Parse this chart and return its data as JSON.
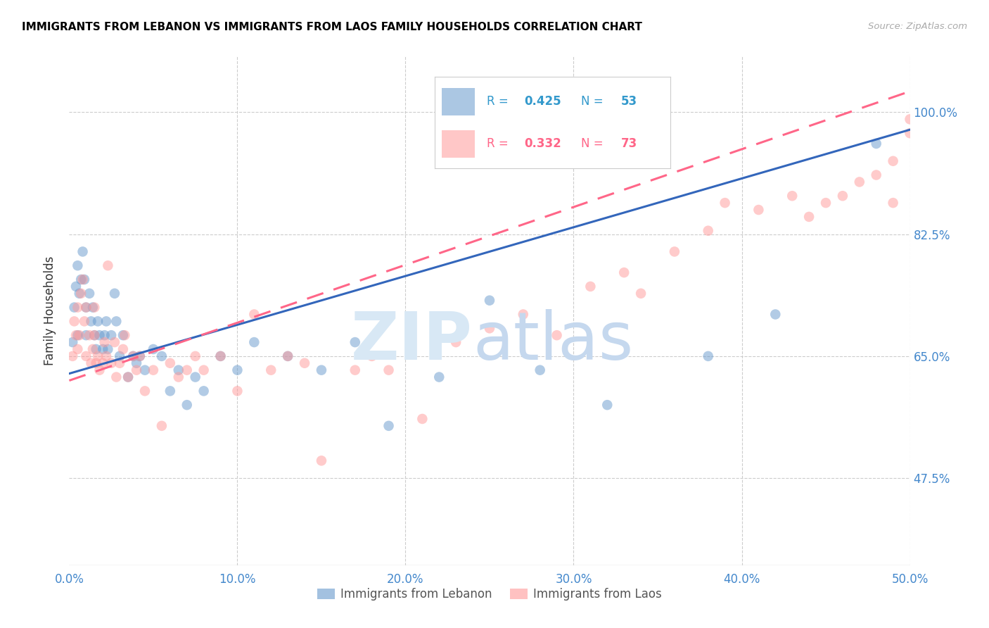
{
  "title": "IMMIGRANTS FROM LEBANON VS IMMIGRANTS FROM LAOS FAMILY HOUSEHOLDS CORRELATION CHART",
  "source": "Source: ZipAtlas.com",
  "xlabel_ticks": [
    "0.0%",
    "10.0%",
    "20.0%",
    "30.0%",
    "40.0%",
    "50.0%"
  ],
  "xlabel_vals": [
    0.0,
    0.1,
    0.2,
    0.3,
    0.4,
    0.5
  ],
  "ylabel_ticks": [
    "47.5%",
    "65.0%",
    "82.5%",
    "100.0%"
  ],
  "ylabel_vals": [
    0.475,
    0.65,
    0.825,
    1.0
  ],
  "xlim": [
    0.0,
    0.5
  ],
  "ylim": [
    0.35,
    1.08
  ],
  "ylabel": "Family Households",
  "legend_lebanon": "Immigrants from Lebanon",
  "legend_laos": "Immigrants from Laos",
  "R_lebanon": 0.425,
  "N_lebanon": 53,
  "R_laos": 0.332,
  "N_laos": 73,
  "color_lebanon": "#6699CC",
  "color_laos": "#FF9999",
  "trendline_lebanon_color": "#3366BB",
  "trendline_laos_color": "#FF6688",
  "lebanon_trend_x": [
    0.0,
    0.5
  ],
  "lebanon_trend_y": [
    0.625,
    0.975
  ],
  "laos_trend_x": [
    0.0,
    0.5
  ],
  "laos_trend_y": [
    0.615,
    1.03
  ],
  "lebanon_x": [
    0.002,
    0.003,
    0.004,
    0.005,
    0.005,
    0.006,
    0.007,
    0.008,
    0.009,
    0.01,
    0.01,
    0.012,
    0.013,
    0.014,
    0.015,
    0.016,
    0.017,
    0.018,
    0.02,
    0.021,
    0.022,
    0.023,
    0.025,
    0.027,
    0.028,
    0.03,
    0.032,
    0.035,
    0.038,
    0.04,
    0.042,
    0.045,
    0.05,
    0.055,
    0.06,
    0.065,
    0.07,
    0.075,
    0.08,
    0.09,
    0.1,
    0.11,
    0.13,
    0.15,
    0.17,
    0.19,
    0.22,
    0.25,
    0.28,
    0.32,
    0.38,
    0.42,
    0.48
  ],
  "lebanon_y": [
    0.67,
    0.72,
    0.75,
    0.78,
    0.68,
    0.74,
    0.76,
    0.8,
    0.76,
    0.72,
    0.68,
    0.74,
    0.7,
    0.72,
    0.68,
    0.66,
    0.7,
    0.68,
    0.66,
    0.68,
    0.7,
    0.66,
    0.68,
    0.74,
    0.7,
    0.65,
    0.68,
    0.62,
    0.65,
    0.64,
    0.65,
    0.63,
    0.66,
    0.65,
    0.6,
    0.63,
    0.58,
    0.62,
    0.6,
    0.65,
    0.63,
    0.67,
    0.65,
    0.63,
    0.67,
    0.55,
    0.62,
    0.73,
    0.63,
    0.58,
    0.65,
    0.71,
    0.955
  ],
  "laos_x": [
    0.002,
    0.003,
    0.004,
    0.005,
    0.005,
    0.006,
    0.007,
    0.008,
    0.009,
    0.01,
    0.01,
    0.012,
    0.013,
    0.014,
    0.015,
    0.015,
    0.016,
    0.017,
    0.018,
    0.02,
    0.021,
    0.022,
    0.023,
    0.025,
    0.027,
    0.028,
    0.03,
    0.032,
    0.033,
    0.035,
    0.038,
    0.04,
    0.042,
    0.045,
    0.05,
    0.055,
    0.06,
    0.065,
    0.07,
    0.075,
    0.08,
    0.09,
    0.1,
    0.11,
    0.12,
    0.13,
    0.14,
    0.15,
    0.17,
    0.18,
    0.19,
    0.21,
    0.23,
    0.25,
    0.27,
    0.29,
    0.31,
    0.33,
    0.34,
    0.36,
    0.38,
    0.39,
    0.41,
    0.43,
    0.44,
    0.45,
    0.46,
    0.47,
    0.48,
    0.49,
    0.49,
    0.5,
    0.5
  ],
  "laos_y": [
    0.65,
    0.7,
    0.68,
    0.72,
    0.66,
    0.68,
    0.74,
    0.76,
    0.7,
    0.72,
    0.65,
    0.68,
    0.64,
    0.66,
    0.68,
    0.72,
    0.64,
    0.65,
    0.63,
    0.64,
    0.67,
    0.65,
    0.78,
    0.64,
    0.67,
    0.62,
    0.64,
    0.66,
    0.68,
    0.62,
    0.65,
    0.63,
    0.65,
    0.6,
    0.63,
    0.55,
    0.64,
    0.62,
    0.63,
    0.65,
    0.63,
    0.65,
    0.6,
    0.71,
    0.63,
    0.65,
    0.64,
    0.5,
    0.63,
    0.65,
    0.63,
    0.56,
    0.67,
    0.69,
    0.71,
    0.68,
    0.75,
    0.77,
    0.74,
    0.8,
    0.83,
    0.87,
    0.86,
    0.88,
    0.85,
    0.87,
    0.88,
    0.9,
    0.91,
    0.93,
    0.87,
    0.99,
    0.97
  ]
}
